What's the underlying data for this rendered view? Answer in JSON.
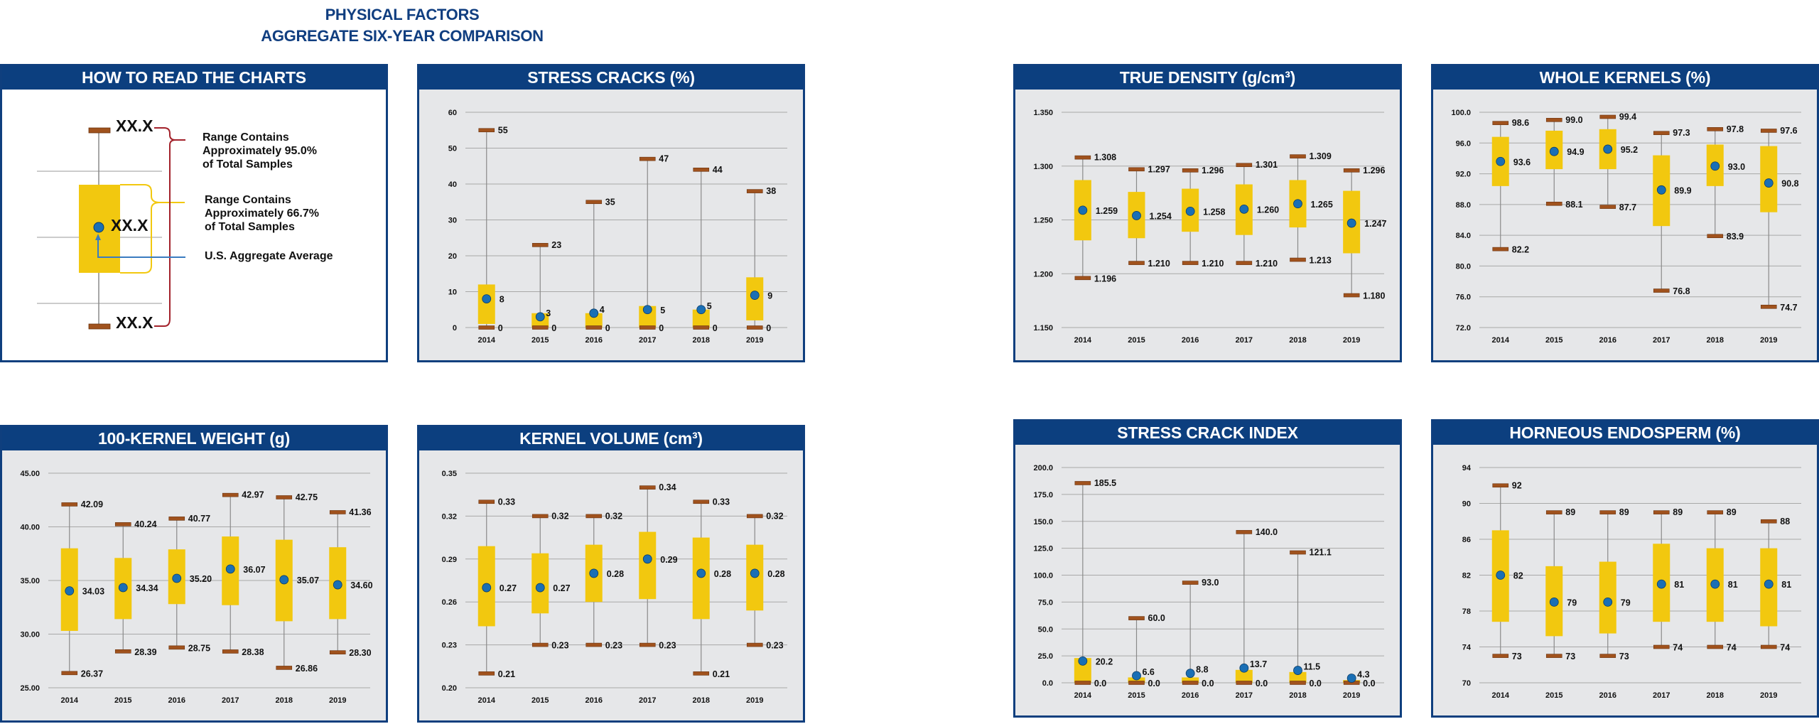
{
  "page": {
    "title_line1": "PHYSICAL FACTORS",
    "title_line2": "AGGREGATE SIX-YEAR COMPARISON"
  },
  "legend": {
    "title": "HOW TO READ THE CHARTS",
    "top_value": "XX.X",
    "mid_value": "XX.X",
    "bottom_value": "XX.X",
    "range95_line1": "Range Contains",
    "range95_line2": "Approximately 95.0%",
    "range95_line3": "of Total Samples",
    "range667_line1": "Range Contains",
    "range667_line2": "Approximately 66.7%",
    "range667_line3": "of Total Samples",
    "average_label": "U.S. Aggregate Average"
  },
  "colors": {
    "header": "#0c3f7f",
    "box": "#f2c80f",
    "whisker_cap": "#a0521d",
    "mean_dot": "#1a6fb5",
    "bracket95": "#a3222b",
    "bracket667": "#f2c80f",
    "arrow": "#3a7cc0"
  },
  "chart_data": [
    {
      "id": "stress-cracks",
      "type": "box",
      "title": "STRESS CRACKS (%)",
      "categories": [
        "2014",
        "2015",
        "2016",
        "2017",
        "2018",
        "2019"
      ],
      "yticks": [
        "0",
        "10",
        "20",
        "30",
        "40",
        "50",
        "60"
      ],
      "ylim": [
        0,
        60
      ],
      "grid": true,
      "low": [
        0,
        0,
        0,
        0,
        0,
        0
      ],
      "high": [
        55,
        23,
        35,
        47,
        44,
        38
      ],
      "box_low": [
        1,
        0,
        0,
        0,
        0,
        2
      ],
      "box_high": [
        12,
        4,
        4,
        6,
        5,
        14
      ],
      "mean": [
        8,
        3,
        4,
        5,
        5,
        9
      ],
      "low_labels": [
        "0",
        "0",
        "0",
        "0",
        "0",
        "0"
      ],
      "high_labels": [
        "55",
        "23",
        "35",
        "47",
        "44",
        "38"
      ],
      "mean_labels": [
        "8",
        "3",
        "4",
        "5",
        "5",
        "9"
      ]
    },
    {
      "id": "true-density",
      "type": "box",
      "title": "TRUE DENSITY (g/cm³)",
      "categories": [
        "2014",
        "2015",
        "2016",
        "2017",
        "2018",
        "2019"
      ],
      "yticks": [
        "1.150",
        "1.200",
        "1.250",
        "1.300",
        "1.350"
      ],
      "ylim": [
        1.15,
        1.35
      ],
      "grid": true,
      "low": [
        1.196,
        1.21,
        1.21,
        1.21,
        1.213,
        1.18
      ],
      "high": [
        1.308,
        1.297,
        1.296,
        1.301,
        1.309,
        1.296
      ],
      "box_low": [
        1.231,
        1.233,
        1.239,
        1.236,
        1.243,
        1.219
      ],
      "box_high": [
        1.287,
        1.276,
        1.279,
        1.283,
        1.287,
        1.277
      ],
      "mean": [
        1.259,
        1.254,
        1.258,
        1.26,
        1.265,
        1.247
      ],
      "low_labels": [
        "1.196",
        "1.210",
        "1.210",
        "1.210",
        "1.213",
        "1.180"
      ],
      "high_labels": [
        "1.308",
        "1.297",
        "1.296",
        "1.301",
        "1.309",
        "1.296"
      ],
      "mean_labels": [
        "1.259",
        "1.254",
        "1.258",
        "1.260",
        "1.265",
        "1.247"
      ]
    },
    {
      "id": "whole-kernels",
      "type": "box",
      "title": "WHOLE KERNELS (%)",
      "categories": [
        "2014",
        "2015",
        "2016",
        "2017",
        "2018",
        "2019"
      ],
      "yticks": [
        "72.0",
        "76.0",
        "80.0",
        "84.0",
        "88.0",
        "92.0",
        "96.0",
        "100.0"
      ],
      "ylim": [
        72,
        100
      ],
      "grid": true,
      "low": [
        82.2,
        88.1,
        87.7,
        76.8,
        83.9,
        74.7
      ],
      "high": [
        98.6,
        99.0,
        99.4,
        97.3,
        97.8,
        97.6
      ],
      "box_low": [
        90.4,
        92.6,
        92.6,
        85.2,
        90.4,
        87.0
      ],
      "box_high": [
        96.8,
        97.6,
        97.8,
        94.4,
        95.8,
        95.6
      ],
      "mean": [
        93.6,
        94.9,
        95.2,
        89.9,
        93.0,
        90.8
      ],
      "low_labels": [
        "82.2",
        "88.1",
        "87.7",
        "76.8",
        "83.9",
        "74.7"
      ],
      "high_labels": [
        "98.6",
        "99.0",
        "99.4",
        "97.3",
        "97.8",
        "97.6"
      ],
      "mean_labels": [
        "93.6",
        "94.9",
        "95.2",
        "89.9",
        "93.0",
        "90.8"
      ]
    },
    {
      "id": "kernel-weight",
      "type": "box",
      "title": "100-KERNEL WEIGHT (g)",
      "categories": [
        "2014",
        "2015",
        "2016",
        "2017",
        "2018",
        "2019"
      ],
      "yticks": [
        "25.00",
        "30.00",
        "35.00",
        "40.00",
        "45.00"
      ],
      "ylim": [
        25,
        45
      ],
      "grid": true,
      "low": [
        26.37,
        28.39,
        28.75,
        28.38,
        26.86,
        28.3
      ],
      "high": [
        42.09,
        40.24,
        40.77,
        42.97,
        42.75,
        41.36
      ],
      "box_low": [
        30.3,
        31.4,
        32.8,
        32.7,
        31.2,
        31.4
      ],
      "box_high": [
        38.0,
        37.1,
        37.9,
        39.1,
        38.8,
        38.1
      ],
      "mean": [
        34.03,
        34.34,
        35.2,
        36.07,
        35.07,
        34.6
      ],
      "low_labels": [
        "26.37",
        "28.39",
        "28.75",
        "28.38",
        "26.86",
        "28.30"
      ],
      "high_labels": [
        "42.09",
        "40.24",
        "40.77",
        "42.97",
        "42.75",
        "41.36"
      ],
      "mean_labels": [
        "34.03",
        "34.34",
        "35.20",
        "36.07",
        "35.07",
        "34.60"
      ]
    },
    {
      "id": "kernel-volume",
      "type": "box",
      "title": "KERNEL VOLUME (cm³)",
      "categories": [
        "2014",
        "2015",
        "2016",
        "2017",
        "2018",
        "2019"
      ],
      "yticks": [
        "0.20",
        "0.23",
        "0.26",
        "0.29",
        "0.32",
        "0.35"
      ],
      "ylim": [
        0.2,
        0.35
      ],
      "grid": true,
      "low": [
        0.21,
        0.23,
        0.23,
        0.23,
        0.21,
        0.23
      ],
      "high": [
        0.33,
        0.32,
        0.32,
        0.34,
        0.33,
        0.32
      ],
      "box_low": [
        0.243,
        0.252,
        0.26,
        0.262,
        0.248,
        0.254
      ],
      "box_high": [
        0.299,
        0.294,
        0.3,
        0.309,
        0.305,
        0.3
      ],
      "mean": [
        0.27,
        0.27,
        0.28,
        0.29,
        0.28,
        0.28
      ],
      "low_labels": [
        "0.21",
        "0.23",
        "0.23",
        "0.23",
        "0.21",
        "0.23"
      ],
      "high_labels": [
        "0.33",
        "0.32",
        "0.32",
        "0.34",
        "0.33",
        "0.32"
      ],
      "mean_labels": [
        "0.27",
        "0.27",
        "0.28",
        "0.29",
        "0.28",
        "0.28"
      ]
    },
    {
      "id": "stress-crack-index",
      "type": "box",
      "title": "STRESS CRACK INDEX",
      "categories": [
        "2014",
        "2015",
        "2016",
        "2017",
        "2018",
        "2019"
      ],
      "yticks": [
        "0.0",
        "25.0",
        "50.0",
        "75.0",
        "100.0",
        "125.0",
        "150.0",
        "175.0",
        "200.0"
      ],
      "ylim": [
        0,
        200
      ],
      "grid": true,
      "low": [
        0,
        0,
        0,
        0,
        0,
        0
      ],
      "high": [
        185.5,
        60.0,
        93.0,
        140.0,
        121.1,
        0
      ],
      "box_low": [
        0,
        0,
        0,
        0,
        0,
        0
      ],
      "box_high": [
        23,
        5,
        5,
        12,
        10,
        2.5
      ],
      "mean": [
        20.2,
        6.6,
        8.8,
        13.7,
        11.5,
        4.3
      ],
      "low_labels": [
        "0.0",
        "0.0",
        "0.0",
        "0.0",
        "0.0",
        "0.0"
      ],
      "high_labels": [
        "185.5",
        "60.0",
        "93.0",
        "140.0",
        "121.1",
        ""
      ],
      "mean_labels": [
        "20.2",
        "6.6",
        "8.8",
        "13.7",
        "11.5",
        "4.3"
      ]
    },
    {
      "id": "horneous-endosperm",
      "type": "box",
      "title": "HORNEOUS ENDOSPERM (%)",
      "categories": [
        "2014",
        "2015",
        "2016",
        "2017",
        "2018",
        "2019"
      ],
      "yticks": [
        "70",
        "74",
        "78",
        "82",
        "86",
        "90",
        "94"
      ],
      "ylim": [
        70,
        94
      ],
      "grid": true,
      "low": [
        73,
        73,
        73,
        74,
        74,
        74
      ],
      "high": [
        92,
        89,
        89,
        89,
        89,
        88
      ],
      "box_low": [
        76.8,
        75.2,
        75.5,
        76.8,
        76.8,
        76.3
      ],
      "box_high": [
        87.0,
        83.0,
        83.5,
        85.5,
        85.0,
        85.0
      ],
      "mean": [
        82,
        79,
        79,
        81,
        81,
        81
      ],
      "low_labels": [
        "73",
        "73",
        "73",
        "74",
        "74",
        "74"
      ],
      "high_labels": [
        "92",
        "89",
        "89",
        "89",
        "89",
        "88"
      ],
      "mean_labels": [
        "82",
        "79",
        "79",
        "81",
        "81",
        "81"
      ]
    }
  ]
}
